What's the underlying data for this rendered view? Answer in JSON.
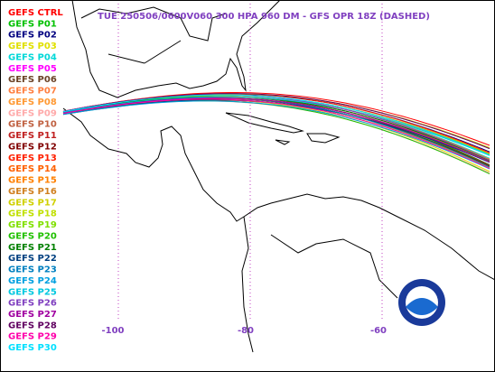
{
  "title": "TUE 250506/0600V060  300 HPA 960 DM - GFS OPR 18Z (DASHED)",
  "legend": [
    {
      "label": "GEFS CTRL",
      "color": "#ff0000"
    },
    {
      "label": "GEFS P01",
      "color": "#00c000"
    },
    {
      "label": "GEFS P02",
      "color": "#000080"
    },
    {
      "label": "GEFS P03",
      "color": "#e0e000"
    },
    {
      "label": "GEFS P04",
      "color": "#00d8d8"
    },
    {
      "label": "GEFS P05",
      "color": "#ff00ff"
    },
    {
      "label": "GEFS P06",
      "color": "#6b4226"
    },
    {
      "label": "GEFS P07",
      "color": "#ff7f40"
    },
    {
      "label": "GEFS P08",
      "color": "#ff9933"
    },
    {
      "label": "GEFS P09",
      "color": "#ffaaaa"
    },
    {
      "label": "GEFS P10",
      "color": "#c06040"
    },
    {
      "label": "GEFS P11",
      "color": "#c02020"
    },
    {
      "label": "GEFS P12",
      "color": "#800000"
    },
    {
      "label": "GEFS P13",
      "color": "#ff2000"
    },
    {
      "label": "GEFS P14",
      "color": "#ff6000"
    },
    {
      "label": "GEFS P15",
      "color": "#ff8000"
    },
    {
      "label": "GEFS P16",
      "color": "#d08020"
    },
    {
      "label": "GEFS P17",
      "color": "#d0d000"
    },
    {
      "label": "GEFS P18",
      "color": "#c0e000"
    },
    {
      "label": "GEFS P19",
      "color": "#80e000"
    },
    {
      "label": "GEFS P20",
      "color": "#20c000"
    },
    {
      "label": "GEFS P21",
      "color": "#008000"
    },
    {
      "label": "GEFS P22",
      "color": "#004080"
    },
    {
      "label": "GEFS P23",
      "color": "#0080c0"
    },
    {
      "label": "GEFS P24",
      "color": "#00a0e0"
    },
    {
      "label": "GEFS P25",
      "color": "#00c8e0"
    },
    {
      "label": "GEFS P26",
      "color": "#8040c0"
    },
    {
      "label": "GEFS P27",
      "color": "#a000a0"
    },
    {
      "label": "GEFS P28",
      "color": "#600060"
    },
    {
      "label": "GEFS P29",
      "color": "#ff00aa"
    },
    {
      "label": "GEFS P30",
      "color": "#00e0ff"
    }
  ],
  "longitude_labels": [
    -100,
    -80,
    -60
  ],
  "title_color": "#8040c0"
}
